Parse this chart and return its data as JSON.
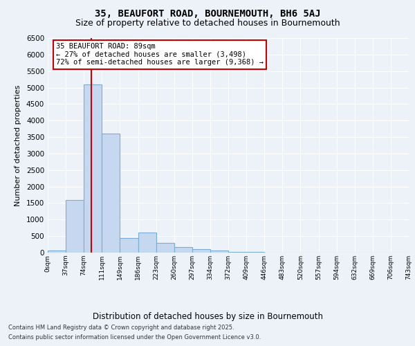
{
  "title_line1": "35, BEAUFORT ROAD, BOURNEMOUTH, BH6 5AJ",
  "title_line2": "Size of property relative to detached houses in Bournemouth",
  "xlabel": "Distribution of detached houses by size in Bournemouth",
  "ylabel": "Number of detached properties",
  "bin_labels": [
    "0sqm",
    "37sqm",
    "74sqm",
    "111sqm",
    "149sqm",
    "186sqm",
    "223sqm",
    "260sqm",
    "297sqm",
    "334sqm",
    "372sqm",
    "409sqm",
    "446sqm",
    "483sqm",
    "520sqm",
    "557sqm",
    "594sqm",
    "632sqm",
    "669sqm",
    "706sqm",
    "743sqm"
  ],
  "bar_values": [
    60,
    1600,
    5100,
    3600,
    450,
    600,
    300,
    160,
    110,
    65,
    30,
    15,
    0,
    0,
    0,
    0,
    0,
    0,
    0,
    0
  ],
  "bar_color": "#c5d8f0",
  "bar_edge_color": "#7badd4",
  "vline_x": 2.4,
  "vline_color": "#cc0000",
  "annotation_text": "35 BEAUFORT ROAD: 89sqm\n← 27% of detached houses are smaller (3,498)\n72% of semi-detached houses are larger (9,368) →",
  "annotation_box_facecolor": "#ffffff",
  "annotation_box_edgecolor": "#cc0000",
  "ylim": [
    0,
    6500
  ],
  "yticks": [
    0,
    500,
    1000,
    1500,
    2000,
    2500,
    3000,
    3500,
    4000,
    4500,
    5000,
    5500,
    6000,
    6500
  ],
  "footer_line1": "Contains HM Land Registry data © Crown copyright and database right 2025.",
  "footer_line2": "Contains public sector information licensed under the Open Government Licence v3.0.",
  "background_color": "#edf2f9",
  "grid_color": "#ffffff",
  "title_fontsize": 10,
  "subtitle_fontsize": 9
}
